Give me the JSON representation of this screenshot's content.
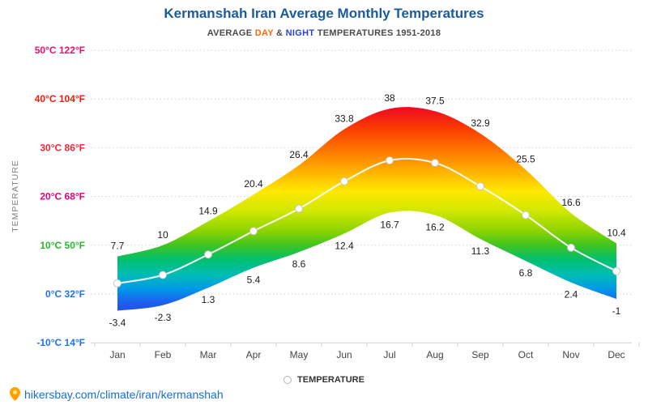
{
  "header": {
    "title": "Kermanshah Iran Average Monthly Temperatures",
    "subtitle_prefix": "AVERAGE ",
    "subtitle_day": "DAY",
    "subtitle_amp": " & ",
    "subtitle_night": "NIGHT",
    "subtitle_suffix": " TEMPERATURES 1951-2018",
    "title_color": "#1b5b9b",
    "day_color": "#ff6a00",
    "night_color": "#2743cf"
  },
  "axis": {
    "y_title": "TEMPERATURE",
    "y_labels": [
      {
        "t": 50,
        "text": "50°C 122°F",
        "color": "#ef0f6e"
      },
      {
        "t": 40,
        "text": "40°C 104°F",
        "color": "#f31b0c"
      },
      {
        "t": 30,
        "text": "30°C 86°F",
        "color": "#f3273a"
      },
      {
        "t": 20,
        "text": "20°C 68°F",
        "color": "#e8007a"
      },
      {
        "t": 10,
        "text": "10°C 50°F",
        "color": "#2db52d"
      },
      {
        "t": 0,
        "text": "0°C 32°F",
        "color": "#1e73e8"
      },
      {
        "t": -10,
        "text": "-10°C 14°F",
        "color": "#1e73e8"
      }
    ]
  },
  "chart_data": {
    "type": "area",
    "title": "Kermanshah Iran Average Monthly Temperatures",
    "subtitle": "AVERAGE DAY & NIGHT TEMPERATURES 1951-2018",
    "categories": [
      "Jan",
      "Feb",
      "Mar",
      "Apr",
      "May",
      "Jun",
      "Jul",
      "Aug",
      "Sep",
      "Oct",
      "Nov",
      "Dec"
    ],
    "series": [
      {
        "name": "Day (max)",
        "values": [
          7.7,
          10,
          14.9,
          20.4,
          26.4,
          33.8,
          38,
          37.5,
          32.9,
          25.5,
          16.6,
          10.4
        ]
      },
      {
        "name": "Night (min)",
        "values": [
          -3.4,
          -2.3,
          1.3,
          5.4,
          8.6,
          12.4,
          16.7,
          16.2,
          11.3,
          6.8,
          2.4,
          -1
        ]
      },
      {
        "name": "Temperature (mean)",
        "values": [
          2.2,
          3.9,
          8.1,
          12.9,
          17.5,
          23.1,
          27.4,
          26.9,
          22.1,
          16.2,
          9.5,
          4.7
        ]
      }
    ],
    "ylabel": "TEMPERATURE",
    "ylim": [
      -10,
      50
    ],
    "y_ticks_c": [
      50,
      40,
      30,
      20,
      10,
      0,
      -10
    ],
    "grid": "dotted-horizontal",
    "legend_position": "bottom-center",
    "band_style": "vertical rainbow gradient mapped to temperature, between day and night curves",
    "mean_line_style": "white line with white circular markers",
    "color_scale": [
      {
        "t": 45,
        "color": "#cf0428"
      },
      {
        "t": 38,
        "color": "#ef0c23"
      },
      {
        "t": 34,
        "color": "#fb3c00"
      },
      {
        "t": 29,
        "color": "#ff7d00"
      },
      {
        "t": 25,
        "color": "#ffb400"
      },
      {
        "t": 21,
        "color": "#fde800"
      },
      {
        "t": 17,
        "color": "#cfe800"
      },
      {
        "t": 13,
        "color": "#8ed400"
      },
      {
        "t": 10,
        "color": "#3fc420"
      },
      {
        "t": 7,
        "color": "#00bf6f"
      },
      {
        "t": 4,
        "color": "#00bdb4"
      },
      {
        "t": 1,
        "color": "#0099e8"
      },
      {
        "t": -1.5,
        "color": "#1d62f0"
      },
      {
        "t": -6,
        "color": "#2936dd"
      }
    ]
  },
  "legend": {
    "marker": "circle-outline",
    "label": "TEMPERATURE"
  },
  "footer": {
    "pin_icon": "location-pin",
    "link": "hikersbay.com/climate/iran/kermanshah"
  }
}
